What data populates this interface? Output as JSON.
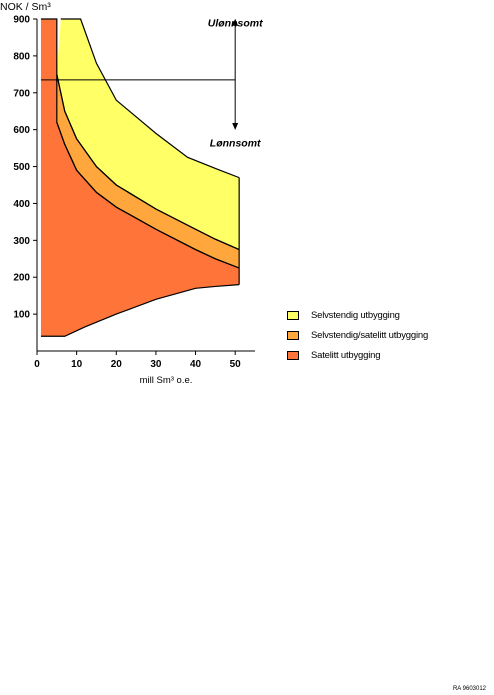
{
  "chart_data": {
    "type": "area",
    "ylabel": "NOK / Sm³",
    "xlabel": "mill Sm³ o.e.",
    "xlim": [
      0,
      55
    ],
    "ylim": [
      0,
      900
    ],
    "x_ticks": [
      0,
      10,
      20,
      30,
      40,
      50
    ],
    "y_ticks": [
      100,
      200,
      300,
      400,
      500,
      600,
      700,
      800,
      900
    ],
    "colors": {
      "yellow": "#FFFF66",
      "orange_light": "#FFA63D",
      "orange_dark": "#FF7438"
    },
    "regions": [
      {
        "name": "Satelitt utbygging",
        "color": "#FF7438",
        "upper": [
          [
            1,
            900
          ],
          [
            5,
            900
          ],
          [
            5,
            620
          ],
          [
            7,
            560
          ],
          [
            10,
            490
          ],
          [
            15,
            430
          ],
          [
            20,
            390
          ],
          [
            30,
            330
          ],
          [
            40,
            275
          ],
          [
            45,
            250
          ],
          [
            51,
            225
          ]
        ],
        "lower": [
          [
            1,
            40
          ],
          [
            7,
            40
          ],
          [
            12,
            65
          ],
          [
            20,
            100
          ],
          [
            30,
            140
          ],
          [
            40,
            170
          ],
          [
            45,
            175
          ],
          [
            51,
            180
          ]
        ]
      },
      {
        "name": "Selvstendig/satelitt utbygging",
        "color": "#FFA63D",
        "upper": [
          [
            5,
            750
          ],
          [
            7,
            650
          ],
          [
            10,
            575
          ],
          [
            15,
            500
          ],
          [
            20,
            450
          ],
          [
            30,
            385
          ],
          [
            40,
            330
          ],
          [
            45,
            303
          ],
          [
            51,
            275
          ]
        ],
        "lower": [
          [
            5,
            620
          ],
          [
            7,
            560
          ],
          [
            10,
            490
          ],
          [
            15,
            430
          ],
          [
            20,
            390
          ],
          [
            30,
            330
          ],
          [
            40,
            275
          ],
          [
            45,
            250
          ],
          [
            51,
            225
          ]
        ]
      },
      {
        "name": "Selvstendig utbygging",
        "color": "#FFFF66",
        "upper": [
          [
            6,
            900
          ],
          [
            11,
            900
          ],
          [
            15,
            780
          ],
          [
            20,
            680
          ],
          [
            30,
            590
          ],
          [
            38,
            525
          ],
          [
            45,
            495
          ],
          [
            51,
            470
          ]
        ],
        "lower": [
          [
            5,
            750
          ],
          [
            7,
            650
          ],
          [
            10,
            575
          ],
          [
            15,
            500
          ],
          [
            20,
            450
          ],
          [
            30,
            385
          ],
          [
            40,
            330
          ],
          [
            45,
            303
          ],
          [
            51,
            275
          ]
        ]
      }
    ],
    "threshold": {
      "y": 735,
      "x_start": 1,
      "x_end": 50
    },
    "annotations": [
      {
        "text": "Ulønnsomt",
        "x": 50,
        "y": 880
      },
      {
        "text": "Lønnsomt",
        "x": 50,
        "y": 555
      }
    ],
    "arrow": {
      "x": 50,
      "y_from": 610,
      "y_to": 890
    }
  },
  "legend": [
    {
      "label": "Selvstendig utbygging",
      "color": "#FFFF66"
    },
    {
      "label": "Selvstendig/satelitt utbygging",
      "color": "#FFA63D"
    },
    {
      "label": "Satelitt utbygging",
      "color": "#FF7438"
    }
  ],
  "reference": "RA 9603012"
}
